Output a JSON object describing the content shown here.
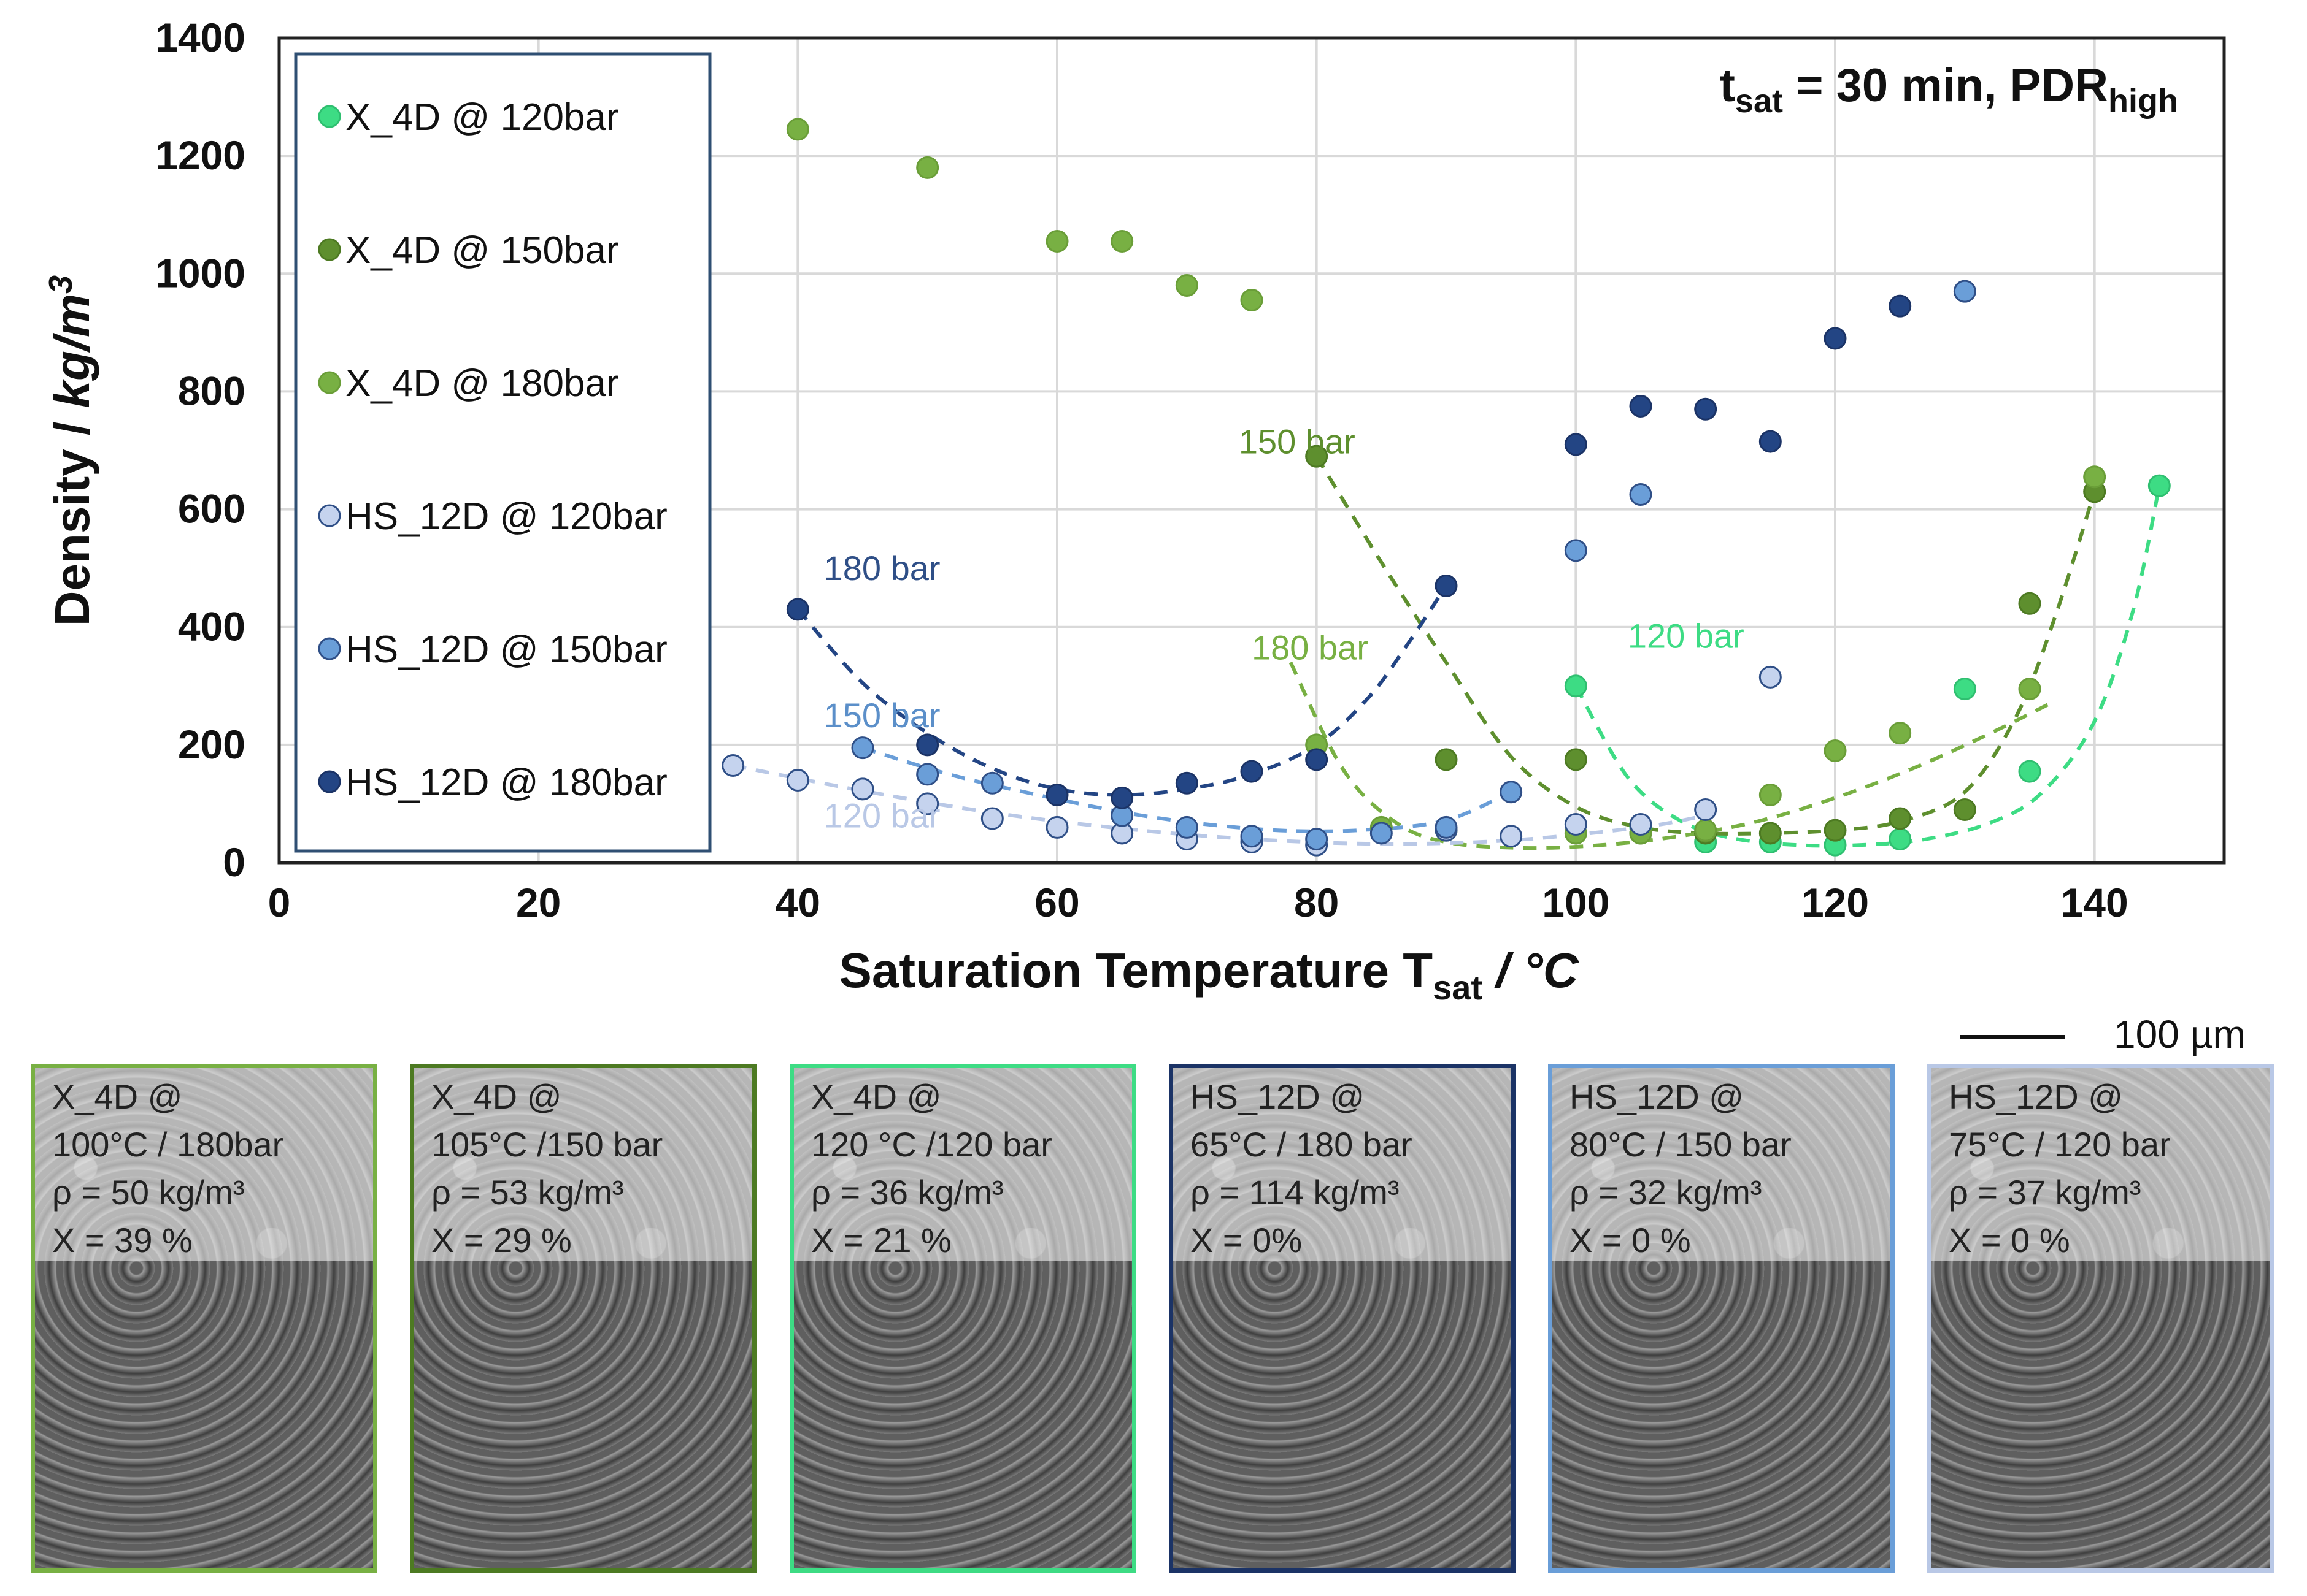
{
  "chart_data": {
    "type": "scatter",
    "title": "t_sat = 30 min, PDR_high",
    "title_parts": {
      "t": "t",
      "t_sub": "sat",
      "mid": " = 30 min, PDR",
      "pdr_sub": "high"
    },
    "xlabel": "Saturation Temperature T_sat / °C",
    "xlabel_parts": {
      "main": "Saturation Temperature T",
      "sub": "sat",
      "tail": " / °C"
    },
    "ylabel": "Density / kg/m³",
    "ylabel_parts": {
      "main": "Density / ",
      "unit": "kg/m",
      "sup": "3"
    },
    "xlim": [
      0,
      150
    ],
    "ylim": [
      0,
      1400
    ],
    "xticks": [
      "0",
      "20",
      "40",
      "60",
      "80",
      "100",
      "120",
      "140"
    ],
    "yticks": [
      "0",
      "200",
      "400",
      "600",
      "800",
      "1000",
      "1200",
      "1400"
    ],
    "grid": true,
    "legend_position": "upper-left",
    "series": [
      {
        "name": "X_4D @ 120bar",
        "color": "#3ddc84",
        "edge": "#2fbf70",
        "points": [
          [
            100,
            300
          ],
          [
            105,
            60
          ],
          [
            110,
            35
          ],
          [
            115,
            35
          ],
          [
            120,
            30
          ],
          [
            125,
            40
          ],
          [
            130,
            295
          ],
          [
            135,
            155
          ],
          [
            145,
            640
          ]
        ],
        "fit": [
          [
            100,
            300
          ],
          [
            104,
            145
          ],
          [
            108,
            72
          ],
          [
            112,
            42
          ],
          [
            117,
            30
          ],
          [
            122,
            30
          ],
          [
            127,
            40
          ],
          [
            132,
            68
          ],
          [
            136,
            120
          ],
          [
            140,
            240
          ],
          [
            143,
            430
          ],
          [
            145,
            640
          ]
        ],
        "fit_color": "#3ddc84"
      },
      {
        "name": "X_4D @ 150bar",
        "color": "#5e8f2e",
        "edge": "#4d7a22",
        "points": [
          [
            80,
            690
          ],
          [
            90,
            175
          ],
          [
            100,
            175
          ],
          [
            105,
            50
          ],
          [
            110,
            50
          ],
          [
            115,
            50
          ],
          [
            120,
            55
          ],
          [
            125,
            75
          ],
          [
            130,
            90
          ],
          [
            135,
            440
          ],
          [
            140,
            630
          ]
        ],
        "fit": [
          [
            80,
            690
          ],
          [
            85,
            510
          ],
          [
            90,
            340
          ],
          [
            95,
            180
          ],
          [
            100,
            95
          ],
          [
            105,
            60
          ],
          [
            110,
            50
          ],
          [
            115,
            50
          ],
          [
            120,
            55
          ],
          [
            125,
            70
          ],
          [
            130,
            120
          ],
          [
            134,
            250
          ],
          [
            137,
            420
          ],
          [
            140,
            630
          ]
        ],
        "fit_color": "#5e8f2e"
      },
      {
        "name": "X_4D  @ 180bar",
        "color": "#78b043",
        "edge": "#6a9e38",
        "points": [
          [
            40,
            1245
          ],
          [
            50,
            1180
          ],
          [
            60,
            1055
          ],
          [
            65,
            1055
          ],
          [
            70,
            980
          ],
          [
            75,
            955
          ],
          [
            80,
            200
          ],
          [
            85,
            60
          ],
          [
            90,
            55
          ],
          [
            100,
            50
          ],
          [
            105,
            50
          ],
          [
            110,
            55
          ],
          [
            115,
            115
          ],
          [
            120,
            190
          ],
          [
            125,
            220
          ],
          [
            135,
            295
          ],
          [
            140,
            655
          ]
        ],
        "fit": [
          [
            78,
            340
          ],
          [
            82,
            160
          ],
          [
            86,
            70
          ],
          [
            90,
            35
          ],
          [
            96,
            25
          ],
          [
            102,
            30
          ],
          [
            108,
            45
          ],
          [
            114,
            70
          ],
          [
            120,
            110
          ],
          [
            126,
            160
          ],
          [
            132,
            220
          ],
          [
            137,
            275
          ]
        ],
        "fit_color": "#78b043"
      },
      {
        "name": "HS_12D @ 120bar",
        "color": "#c5d3ee",
        "edge": "#2f4f87",
        "points": [
          [
            35,
            165
          ],
          [
            40,
            140
          ],
          [
            45,
            125
          ],
          [
            50,
            100
          ],
          [
            55,
            75
          ],
          [
            60,
            60
          ],
          [
            65,
            50
          ],
          [
            70,
            40
          ],
          [
            75,
            35
          ],
          [
            80,
            30
          ],
          [
            90,
            55
          ],
          [
            95,
            45
          ],
          [
            100,
            65
          ],
          [
            105,
            65
          ],
          [
            110,
            90
          ],
          [
            115,
            315
          ]
        ],
        "fit": [
          [
            35,
            165
          ],
          [
            45,
            122
          ],
          [
            55,
            85
          ],
          [
            65,
            58
          ],
          [
            75,
            40
          ],
          [
            85,
            32
          ],
          [
            95,
            38
          ],
          [
            105,
            60
          ],
          [
            110,
            80
          ]
        ],
        "fit_color": "#b9c8e6"
      },
      {
        "name": "HS_12D @ 150bar",
        "color": "#6a9ed8",
        "edge": "#2f4f87",
        "points": [
          [
            45,
            195
          ],
          [
            50,
            150
          ],
          [
            55,
            135
          ],
          [
            65,
            80
          ],
          [
            70,
            60
          ],
          [
            75,
            45
          ],
          [
            80,
            40
          ],
          [
            85,
            50
          ],
          [
            90,
            60
          ],
          [
            95,
            120
          ],
          [
            100,
            530
          ],
          [
            105,
            625
          ],
          [
            130,
            970
          ]
        ],
        "fit": [
          [
            45,
            195
          ],
          [
            52,
            148
          ],
          [
            60,
            108
          ],
          [
            66,
            82
          ],
          [
            72,
            64
          ],
          [
            78,
            54
          ],
          [
            84,
            56
          ],
          [
            90,
            72
          ],
          [
            95,
            120
          ]
        ],
        "fit_color": "#6a9ed8"
      },
      {
        "name": "HS_12D @ 180bar",
        "color": "#234584",
        "edge": "#1b3366",
        "points": [
          [
            40,
            430
          ],
          [
            50,
            200
          ],
          [
            60,
            115
          ],
          [
            65,
            110
          ],
          [
            70,
            135
          ],
          [
            75,
            155
          ],
          [
            80,
            175
          ],
          [
            90,
            470
          ],
          [
            100,
            710
          ],
          [
            105,
            775
          ],
          [
            110,
            770
          ],
          [
            115,
            715
          ],
          [
            120,
            890
          ],
          [
            125,
            945
          ]
        ],
        "fit": [
          [
            40,
            430
          ],
          [
            45,
            305
          ],
          [
            50,
            220
          ],
          [
            55,
            160
          ],
          [
            60,
            125
          ],
          [
            65,
            115
          ],
          [
            70,
            125
          ],
          [
            75,
            150
          ],
          [
            80,
            200
          ],
          [
            84,
            280
          ],
          [
            87,
            370
          ],
          [
            90,
            470
          ]
        ],
        "fit_color": "#234584"
      }
    ],
    "annotations": [
      {
        "text": "180 bar",
        "x": 42,
        "y": 480,
        "color": "#2f4f87"
      },
      {
        "text": "150 bar",
        "x": 42,
        "y": 230,
        "color": "#5b8fc9"
      },
      {
        "text": "120 bar",
        "x": 42,
        "y": 60,
        "color": "#b9c8e6"
      },
      {
        "text": "150 bar",
        "x": 74,
        "y": 695,
        "color": "#5e8f2e"
      },
      {
        "text": "180 bar",
        "x": 75,
        "y": 345,
        "color": "#78b043"
      },
      {
        "text": "120 bar",
        "x": 104,
        "y": 365,
        "color": "#3ddc84"
      }
    ]
  },
  "micrographs": {
    "scale_label": "100 µm",
    "panels": [
      {
        "lines": [
          "X_4D @",
          "100°C / 180bar",
          "ρ = 50 kg/m³",
          "X = 39 %"
        ],
        "border": "#78b043"
      },
      {
        "lines": [
          "X_4D @",
          "105°C /150 bar",
          "ρ = 53 kg/m³",
          "X = 29 %"
        ],
        "border": "#4d7a22"
      },
      {
        "lines": [
          "X_4D @",
          "120 °C /120 bar",
          "ρ = 36 kg/m³",
          "X = 21 %"
        ],
        "border": "#3ddc84"
      },
      {
        "lines": [
          "HS_12D @",
          "65°C / 180 bar",
          "ρ = 114 kg/m³",
          "X = 0%"
        ],
        "border": "#1b3366"
      },
      {
        "lines": [
          "HS_12D @",
          "80°C / 150 bar",
          "ρ = 32 kg/m³",
          "X = 0 %"
        ],
        "border": "#6a9ed8"
      },
      {
        "lines": [
          "HS_12D @",
          "75°C / 120 bar",
          "ρ = 37 kg/m³",
          "X = 0 %"
        ],
        "border": "#b9c8e6"
      }
    ]
  }
}
